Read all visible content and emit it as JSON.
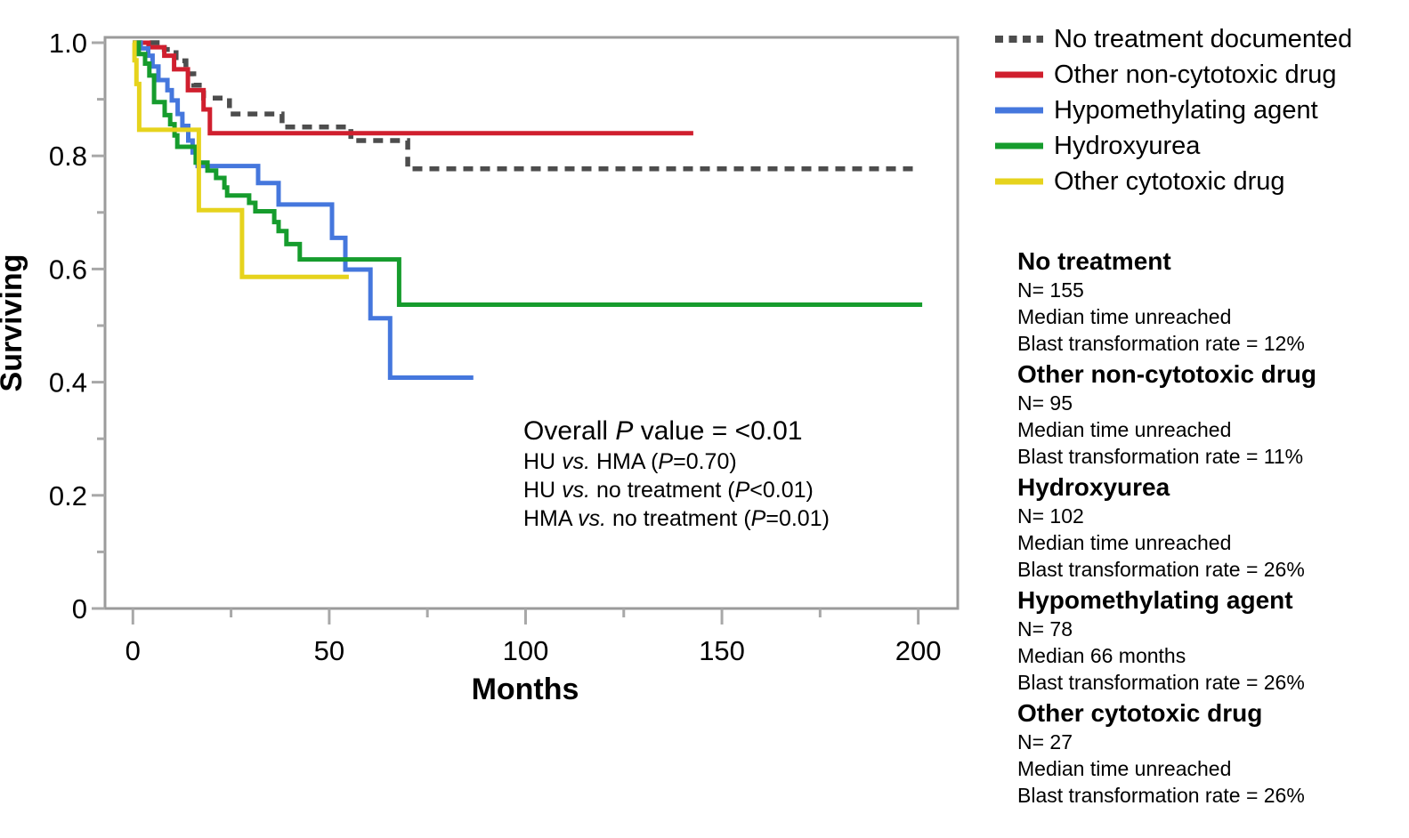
{
  "chart_data": {
    "type": "line",
    "subtype": "kaplan-meier-step",
    "title": "",
    "xlabel": "Months",
    "ylabel": "Surviving",
    "xlim": [
      0,
      210
    ],
    "ylim": [
      0,
      1.01
    ],
    "grid": false,
    "frame": true,
    "legend_position": "outside-top-right",
    "x_ticks": {
      "major": [
        0,
        50,
        100,
        150,
        200
      ],
      "minor": [
        25,
        75,
        125,
        175
      ],
      "labels": [
        "0",
        "50",
        "100",
        "150",
        "200"
      ]
    },
    "y_ticks": {
      "major": [
        0,
        0.2,
        0.4,
        0.6,
        0.8,
        1.0
      ],
      "minor": [
        0.1,
        0.3,
        0.5,
        0.7,
        0.9
      ],
      "labels": [
        "0",
        "0.2",
        "0.4",
        "0.6",
        "0.8",
        "1.0"
      ]
    },
    "series": [
      {
        "name": "No treatment documented",
        "color": "#4d4d4d",
        "dashed": true,
        "points": [
          [
            0,
            1.0
          ],
          [
            8,
            0.988
          ],
          [
            11,
            0.968
          ],
          [
            13.5,
            0.945
          ],
          [
            15.5,
            0.925
          ],
          [
            18,
            0.902
          ],
          [
            24.6,
            0.874
          ],
          [
            38,
            0.851
          ],
          [
            55.5,
            0.827
          ],
          [
            70,
            0.777
          ],
          [
            199.6,
            0.777
          ]
        ]
      },
      {
        "name": "Other non-cytotoxic drug",
        "color": "#d01f2e",
        "dashed": false,
        "points": [
          [
            0,
            1.0
          ],
          [
            4,
            0.992
          ],
          [
            8,
            0.977
          ],
          [
            10.5,
            0.953
          ],
          [
            14,
            0.916
          ],
          [
            18,
            0.882
          ],
          [
            19.6,
            0.84
          ],
          [
            142.7,
            0.84
          ]
        ]
      },
      {
        "name": "Hypomethylating agent",
        "color": "#4577dd",
        "dashed": false,
        "points": [
          [
            0,
            1.0
          ],
          [
            2,
            0.99
          ],
          [
            3.9,
            0.977
          ],
          [
            5,
            0.958
          ],
          [
            6.5,
            0.934
          ],
          [
            8.8,
            0.916
          ],
          [
            9.9,
            0.898
          ],
          [
            11.4,
            0.874
          ],
          [
            12.6,
            0.853
          ],
          [
            14.1,
            0.827
          ],
          [
            15.2,
            0.806
          ],
          [
            16.5,
            0.782
          ],
          [
            31.9,
            0.752
          ],
          [
            37.1,
            0.714
          ],
          [
            50.7,
            0.655
          ],
          [
            54.1,
            0.599
          ],
          [
            60.5,
            0.513
          ],
          [
            65.5,
            0.408
          ],
          [
            86.7,
            0.408
          ]
        ]
      },
      {
        "name": "Hydroxyurea",
        "color": "#169c2d",
        "dashed": false,
        "points": [
          [
            0,
            1.0
          ],
          [
            1.5,
            0.98
          ],
          [
            3.1,
            0.963
          ],
          [
            4.2,
            0.942
          ],
          [
            5.4,
            0.895
          ],
          [
            8.1,
            0.872
          ],
          [
            9.5,
            0.856
          ],
          [
            10.6,
            0.836
          ],
          [
            11.3,
            0.816
          ],
          [
            16,
            0.788
          ],
          [
            19,
            0.774
          ],
          [
            21.2,
            0.761
          ],
          [
            23.3,
            0.744
          ],
          [
            24,
            0.73
          ],
          [
            29.6,
            0.717
          ],
          [
            31.2,
            0.702
          ],
          [
            36,
            0.683
          ],
          [
            37.1,
            0.667
          ],
          [
            39.1,
            0.644
          ],
          [
            42.5,
            0.617
          ],
          [
            67.8,
            0.537
          ],
          [
            201,
            0.537
          ]
        ]
      },
      {
        "name": "Other cytotoxic drug",
        "color": "#e6d31d",
        "dashed": false,
        "points": [
          [
            0,
            1.0
          ],
          [
            0.4,
            0.969
          ],
          [
            0.9,
            0.927
          ],
          [
            1.6,
            0.846
          ],
          [
            16.8,
            0.704
          ],
          [
            27.8,
            0.586
          ],
          [
            55,
            0.586
          ]
        ]
      }
    ],
    "annotation": {
      "title_segments": [
        {
          "t": "Overall "
        },
        {
          "t": "P",
          "i": true
        },
        {
          "t": " value = <0.01"
        }
      ],
      "lines": [
        [
          {
            "t": "HU "
          },
          {
            "t": "vs.",
            "i": true
          },
          {
            "t": " HMA ("
          },
          {
            "t": "P",
            "i": true
          },
          {
            "t": "=0.70)"
          }
        ],
        [
          {
            "t": "HU "
          },
          {
            "t": "vs.",
            "i": true
          },
          {
            "t": " no treatment ("
          },
          {
            "t": "P",
            "i": true
          },
          {
            "t": "<0.01)"
          }
        ],
        [
          {
            "t": "HMA "
          },
          {
            "t": "vs.",
            "i": true
          },
          {
            "t": " no treatment ("
          },
          {
            "t": "P",
            "i": true
          },
          {
            "t": "=0.01)"
          }
        ]
      ]
    }
  },
  "stats_panel": {
    "groups": [
      {
        "title": "No treatment",
        "lines": [
          "N= 155",
          "Median time unreached",
          "Blast transformation rate = 12%"
        ]
      },
      {
        "title": "Other non-cytotoxic drug",
        "lines": [
          "N= 95",
          "Median time unreached",
          "Blast transformation rate = 11%"
        ]
      },
      {
        "title": "Hydroxyurea",
        "lines": [
          "N= 102",
          "Median time unreached",
          "Blast transformation rate = 26%"
        ]
      },
      {
        "title": "Hypomethylating agent",
        "lines": [
          "N= 78",
          "Median 66 months",
          "Blast transformation rate = 26%"
        ]
      },
      {
        "title": "Other cytotoxic drug",
        "lines": [
          "N= 27",
          "Median time unreached",
          "Blast transformation rate = 26%"
        ]
      }
    ]
  },
  "colors": {
    "axis": "#9b9b9b",
    "tick": "#a8a8a8",
    "text": "#000000",
    "background": "#ffffff"
  }
}
